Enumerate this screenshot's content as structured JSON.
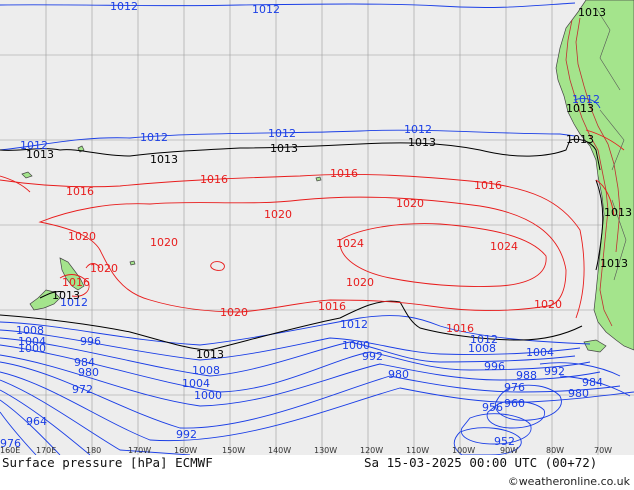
{
  "map": {
    "chart_title": "Surface pressure [hPa] ECMWF",
    "valid_time": "Sa 15-03-2025 00:00 UTC (00+72)",
    "credit": "©weatheronline.co.uk",
    "longitude_ticks": [
      "160E",
      "170E",
      "180",
      "170W",
      "160W",
      "150W",
      "140W",
      "130W",
      "120W",
      "110W",
      "100W",
      "90W",
      "80W",
      "70W"
    ],
    "isobar_labels": {
      "blue": [
        "1012",
        "1012",
        "1012",
        "1012",
        "1012",
        "1012",
        "1012",
        "1012",
        "1012",
        "1012",
        "1008",
        "1008",
        "1008",
        "1004",
        "1004",
        "1004",
        "1000",
        "1000",
        "1000",
        "996",
        "996",
        "992",
        "992",
        "992",
        "988",
        "984",
        "984",
        "980",
        "980",
        "980",
        "976",
        "976",
        "972",
        "964",
        "960",
        "956",
        "952"
      ],
      "black": [
        "1013",
        "1013",
        "1013",
        "1013",
        "1013",
        "1013",
        "1013",
        "1013",
        "1013",
        "1013",
        "1013"
      ],
      "red": [
        "1016",
        "1016",
        "1016",
        "1016",
        "1016",
        "1016",
        "1016",
        "1020",
        "1020",
        "1020",
        "1020",
        "1020",
        "1020",
        "1020",
        "1020",
        "1024",
        "1024"
      ]
    },
    "colors": {
      "ocean": "#ededed",
      "land": "#a4e48c",
      "low_isobar": "#1a3ee6",
      "high_isobar": "#e81c1c",
      "standard_isobar": "#000000"
    }
  }
}
